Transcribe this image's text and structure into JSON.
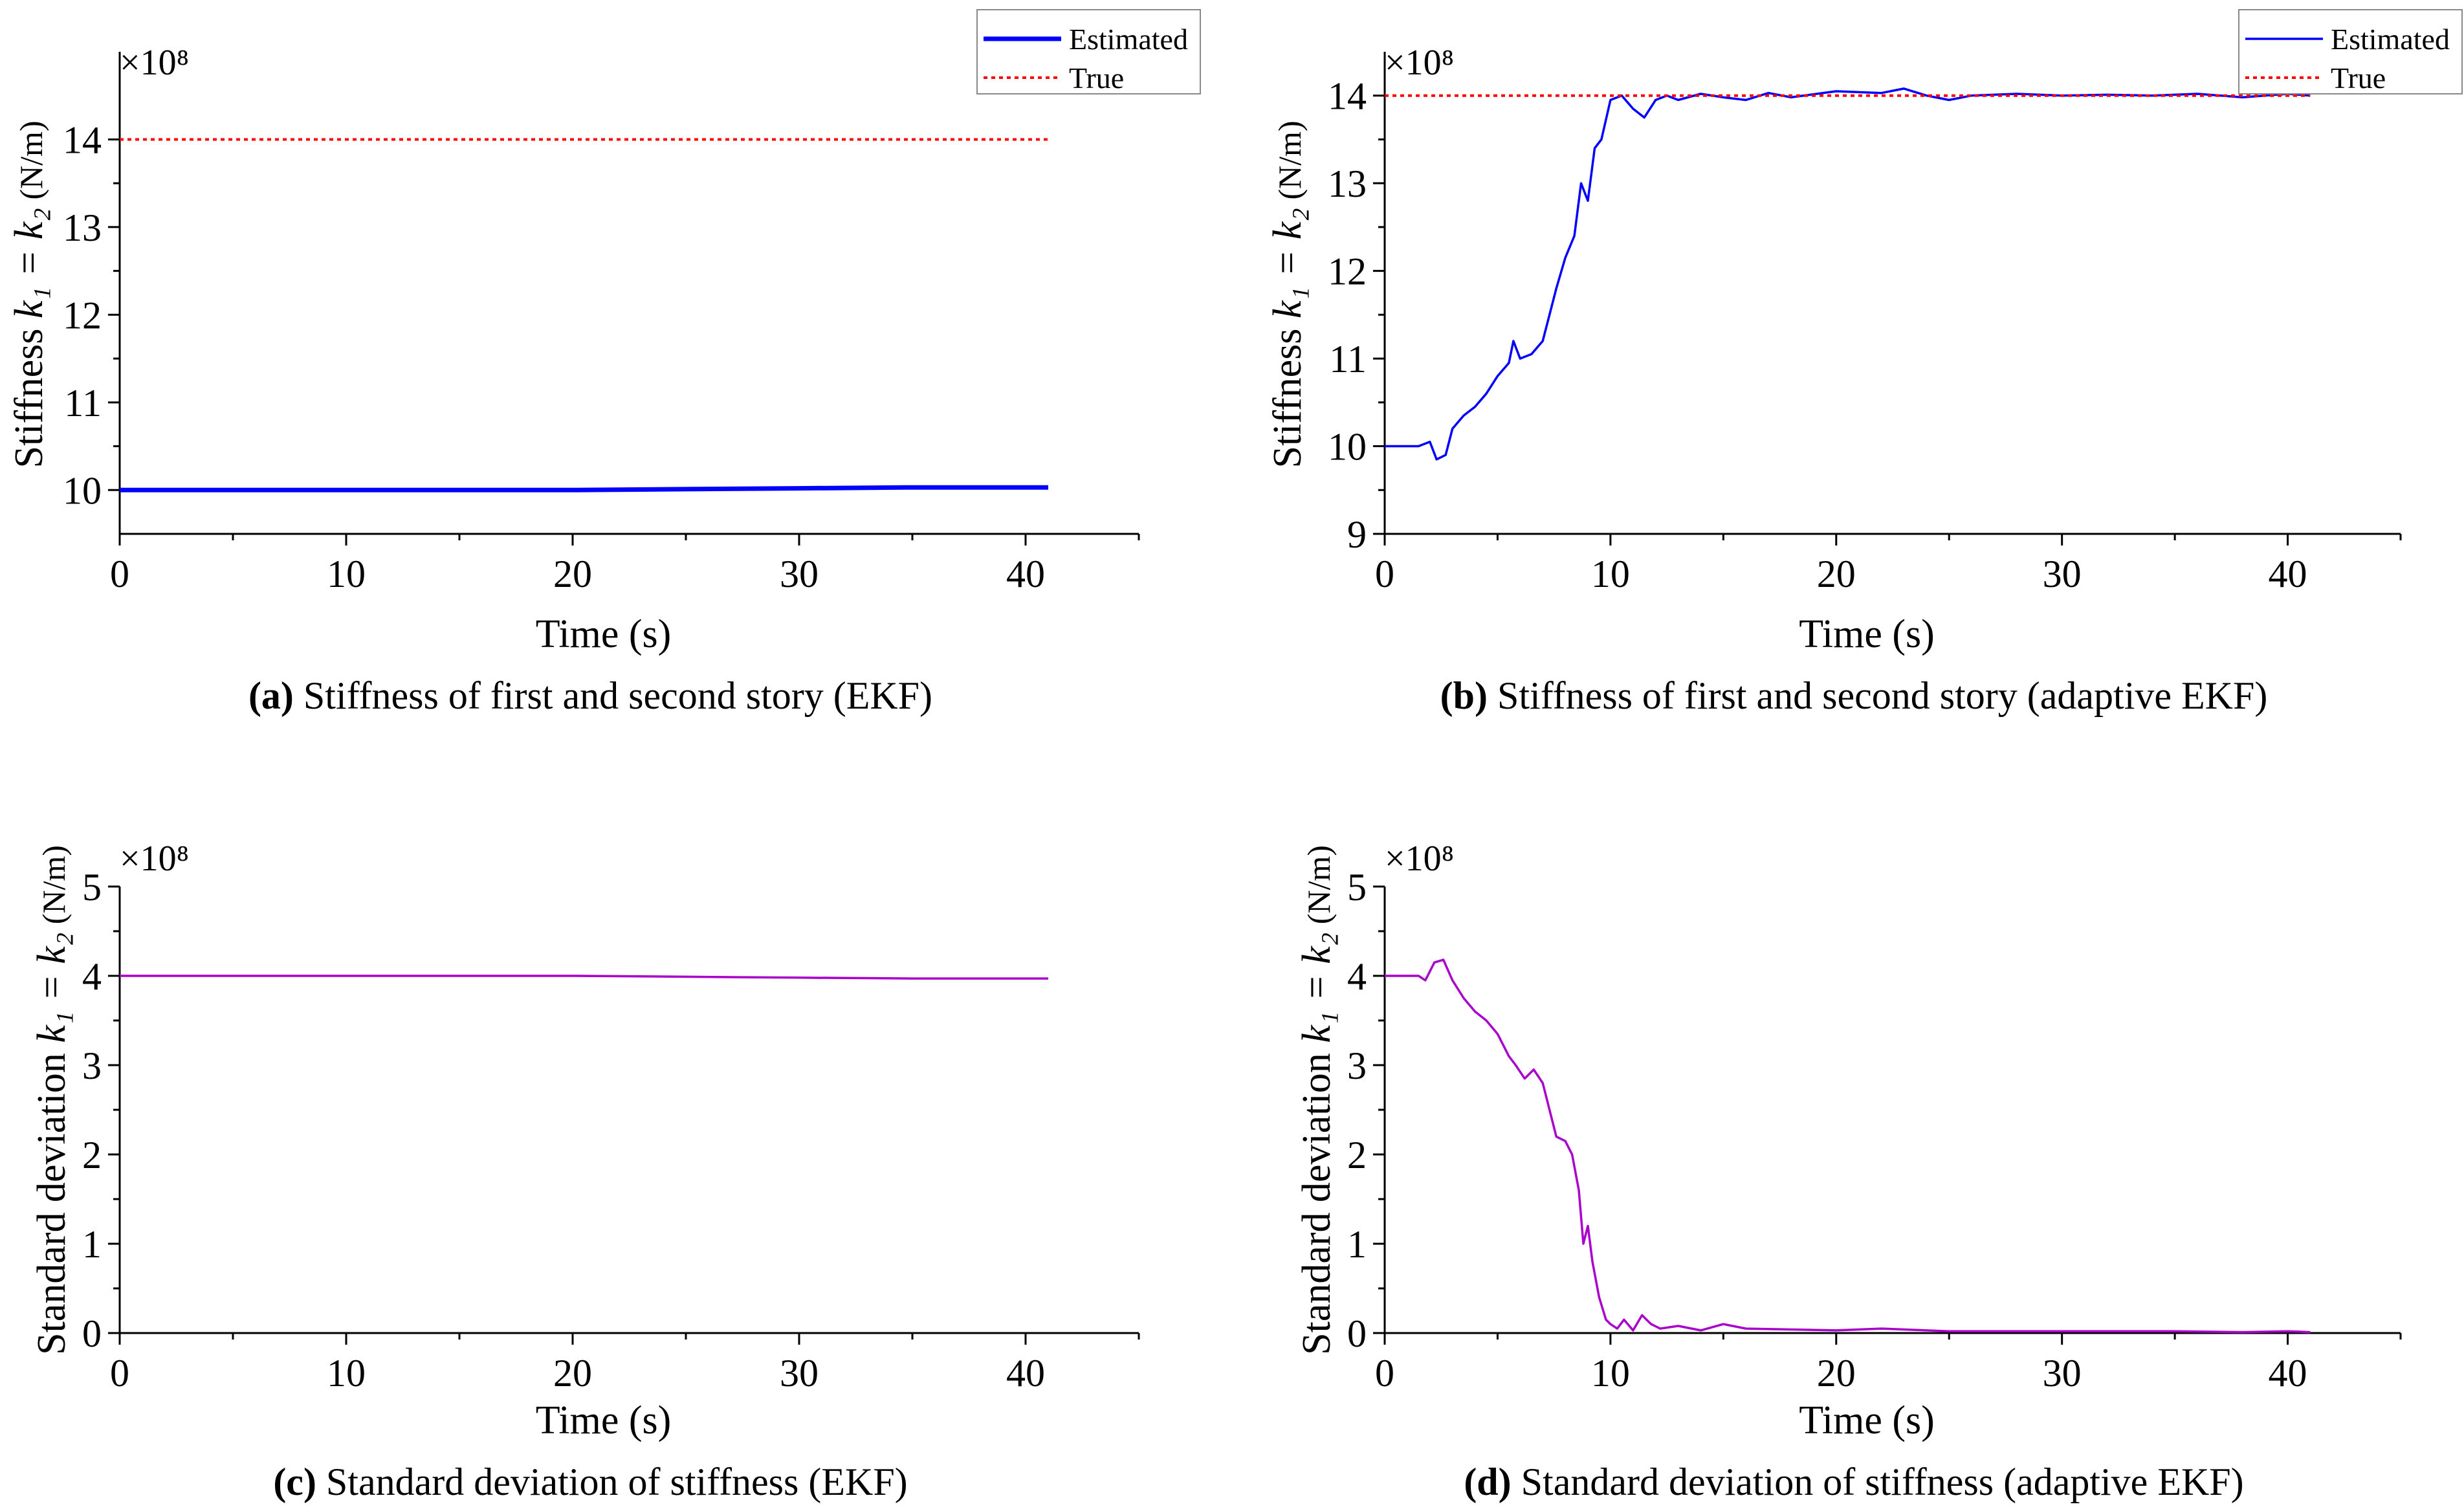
{
  "chart_data": [
    {
      "id": "a",
      "type": "line",
      "caption_letter": "(a)",
      "caption_text": "Stiffness of first and second story (EKF)",
      "xlabel": "Time (s)",
      "ylabel_prefix": "Stiffness",
      "ylabel_symbols": "k₁ = k₂",
      "ylabel_unit": "(N/m)",
      "exponent_label": "×10⁸",
      "xlim": [
        0,
        45
      ],
      "ylim": [
        9.5,
        15
      ],
      "xticks": [
        0,
        10,
        20,
        30,
        40
      ],
      "yticks": [
        10,
        11,
        12,
        13,
        14
      ],
      "legend": {
        "position": "top-right",
        "entries": [
          "Estimated",
          "True"
        ]
      },
      "series": [
        {
          "name": "Estimated",
          "color": "#0000ff",
          "style": "solid",
          "x": [
            0,
            5,
            10,
            15,
            20,
            25,
            30,
            35,
            41
          ],
          "y": [
            10.0,
            10.0,
            10.0,
            10.0,
            10.0,
            10.01,
            10.02,
            10.03,
            10.03
          ]
        },
        {
          "name": "True",
          "color": "#ff0000",
          "style": "dotted",
          "x": [
            0,
            41
          ],
          "y": [
            14.0,
            14.0
          ]
        }
      ]
    },
    {
      "id": "b",
      "type": "line",
      "caption_letter": "(b)",
      "caption_text": "Stiffness of first and second story (adaptive EKF)",
      "xlabel": "Time (s)",
      "ylabel_prefix": "Stiffness",
      "ylabel_symbols": "k₁ = k₂",
      "ylabel_unit": "(N/m)",
      "exponent_label": "×10⁸",
      "xlim": [
        0,
        45
      ],
      "ylim": [
        9,
        14.5
      ],
      "xticks": [
        0,
        10,
        20,
        30,
        40
      ],
      "yticks": [
        9,
        10,
        11,
        12,
        13,
        14
      ],
      "legend": {
        "position": "top-right",
        "entries": [
          "Estimated",
          "True"
        ]
      },
      "series": [
        {
          "name": "Estimated",
          "color": "#0000ff",
          "style": "solid",
          "x": [
            0,
            1.5,
            2.0,
            2.3,
            2.7,
            3.0,
            3.5,
            4.0,
            4.5,
            5.0,
            5.5,
            5.7,
            6.0,
            6.5,
            7.0,
            7.3,
            7.6,
            8.0,
            8.4,
            8.7,
            9.0,
            9.3,
            9.6,
            10.0,
            10.5,
            11.0,
            11.5,
            12.0,
            12.5,
            13.0,
            14.0,
            15.0,
            16.0,
            17.0,
            18.0,
            20.0,
            22.0,
            23.0,
            24.0,
            25.0,
            26.0,
            28.0,
            30.0,
            32.0,
            34.0,
            36.0,
            38.0,
            40.0,
            41.0
          ],
          "y": [
            10.0,
            10.0,
            10.05,
            9.85,
            9.9,
            10.2,
            10.35,
            10.45,
            10.6,
            10.8,
            10.95,
            11.2,
            11.0,
            11.05,
            11.2,
            11.5,
            11.8,
            12.15,
            12.4,
            13.0,
            12.8,
            13.4,
            13.5,
            13.95,
            14.0,
            13.85,
            13.75,
            13.95,
            14.0,
            13.95,
            14.02,
            13.98,
            13.95,
            14.03,
            13.98,
            14.05,
            14.03,
            14.08,
            14.0,
            13.95,
            14.0,
            14.02,
            14.0,
            14.01,
            14.0,
            14.02,
            13.98,
            14.02,
            14.0
          ]
        },
        {
          "name": "True",
          "color": "#ff0000",
          "style": "dotted",
          "x": [
            0,
            41
          ],
          "y": [
            14.0,
            14.0
          ]
        }
      ]
    },
    {
      "id": "c",
      "type": "line",
      "caption_letter": "(c)",
      "caption_text": "Standard deviation of stiffness  (EKF)",
      "xlabel": "Time (s)",
      "ylabel_prefix": "Standard deviation",
      "ylabel_symbols": "k₁ = k₂",
      "ylabel_unit": "(N/m)",
      "exponent_label": "×10⁸",
      "xlim": [
        0,
        45
      ],
      "ylim": [
        0,
        5
      ],
      "xticks": [
        0,
        10,
        20,
        30,
        40
      ],
      "yticks": [
        0,
        1,
        2,
        3,
        4,
        5
      ],
      "series": [
        {
          "name": "Standard deviation",
          "color": "#aa00cc",
          "style": "solid",
          "x": [
            0,
            10,
            20,
            25,
            30,
            35,
            41
          ],
          "y": [
            4.0,
            4.0,
            4.0,
            3.99,
            3.98,
            3.97,
            3.97
          ]
        }
      ]
    },
    {
      "id": "d",
      "type": "line",
      "caption_letter": "(d)",
      "caption_text": "Standard deviation of stiffness  (adaptive EKF)",
      "xlabel": "Time (s)",
      "ylabel_prefix": "Standard deviation",
      "ylabel_symbols": "k₁ = k₂",
      "ylabel_unit": "(N/m)",
      "exponent_label": "×10⁸",
      "xlim": [
        0,
        45
      ],
      "ylim": [
        0,
        5
      ],
      "xticks": [
        0,
        10,
        20,
        30,
        40
      ],
      "yticks": [
        0,
        1,
        2,
        3,
        4,
        5
      ],
      "series": [
        {
          "name": "Standard deviation",
          "color": "#aa00cc",
          "style": "solid",
          "x": [
            0,
            1.5,
            1.8,
            2.2,
            2.6,
            3.0,
            3.5,
            4.0,
            4.5,
            5.0,
            5.5,
            5.8,
            6.2,
            6.6,
            7.0,
            7.3,
            7.6,
            8.0,
            8.3,
            8.6,
            8.8,
            9.0,
            9.2,
            9.5,
            9.8,
            10.0,
            10.3,
            10.6,
            11.0,
            11.4,
            11.8,
            12.2,
            13.0,
            14.0,
            15.0,
            16.0,
            18.0,
            20.0,
            22.0,
            25.0,
            30.0,
            35.0,
            38.0,
            40.0,
            41.0
          ],
          "y": [
            4.0,
            4.0,
            3.95,
            4.15,
            4.18,
            3.95,
            3.75,
            3.6,
            3.5,
            3.35,
            3.1,
            3.0,
            2.85,
            2.95,
            2.8,
            2.5,
            2.2,
            2.15,
            2.0,
            1.6,
            1.0,
            1.2,
            0.8,
            0.4,
            0.15,
            0.1,
            0.05,
            0.15,
            0.03,
            0.2,
            0.1,
            0.05,
            0.08,
            0.03,
            0.1,
            0.05,
            0.04,
            0.03,
            0.05,
            0.02,
            0.02,
            0.02,
            0.01,
            0.02,
            0.01
          ]
        }
      ]
    }
  ]
}
